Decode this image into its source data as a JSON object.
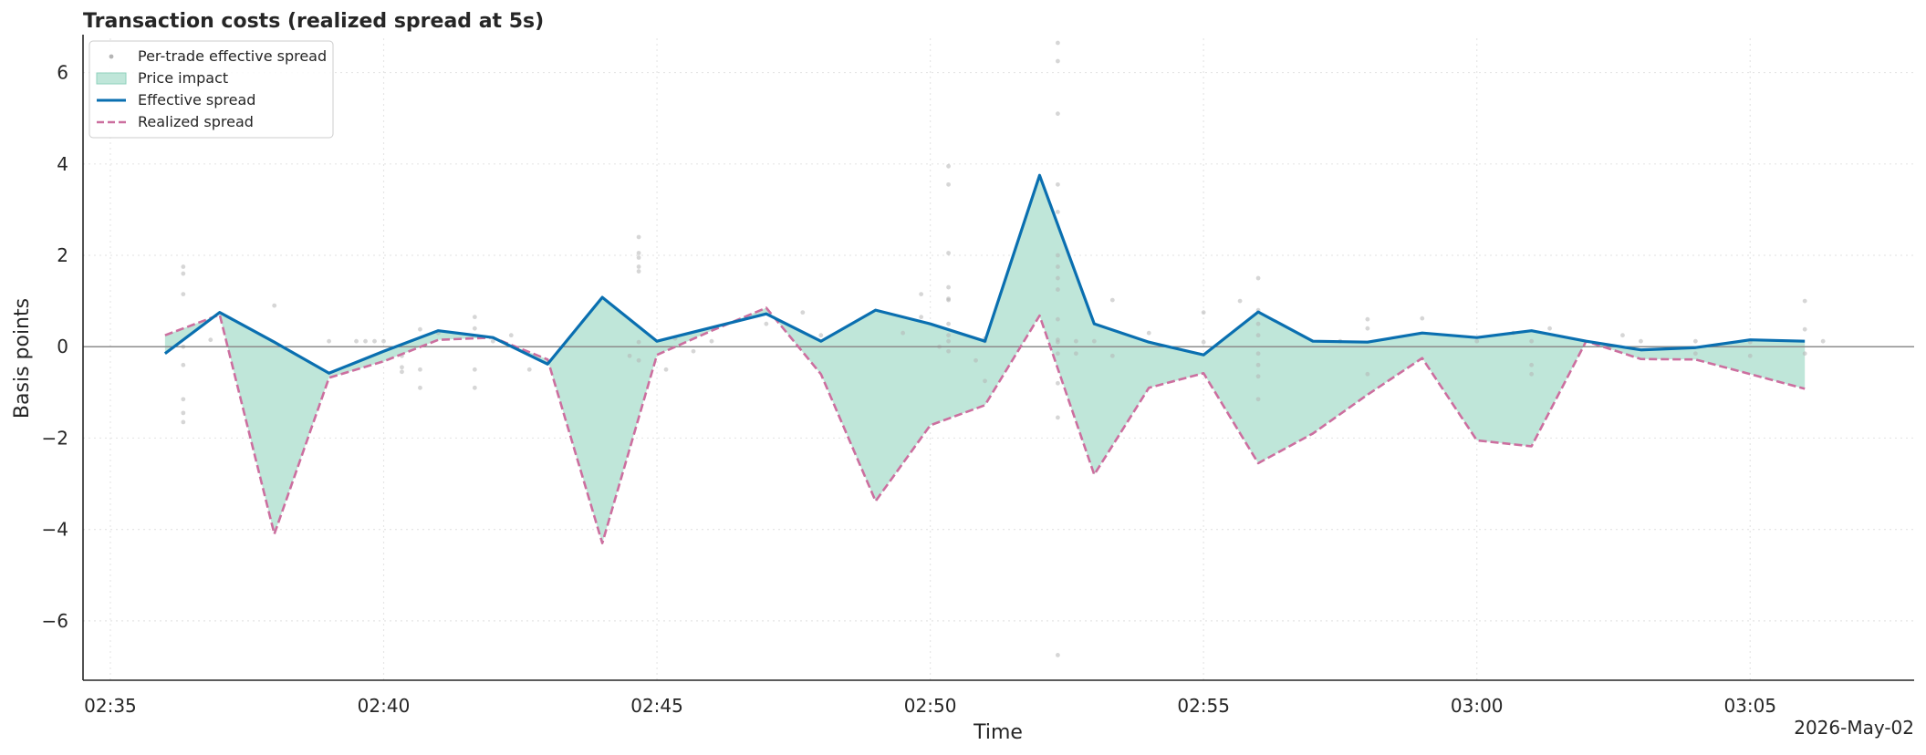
{
  "chart_data": {
    "type": "line",
    "title": "Transaction costs (realized spread at 5s)",
    "xlabel": "Time",
    "ylabel": "Basis points",
    "date_label": "2026-May-02",
    "x_ticks": [
      "02:35",
      "02:40",
      "02:45",
      "02:50",
      "02:55",
      "03:00",
      "03:05"
    ],
    "y_ticks": [
      "−6",
      "−4",
      "−2",
      "0",
      "2",
      "4",
      "6"
    ],
    "ylim": [
      -7.3,
      6.75
    ],
    "xlim": [
      "02:34:30",
      "03:08:00"
    ],
    "grid": true,
    "legend_position": "top-left",
    "x": [
      "02:36",
      "02:37",
      "02:38",
      "02:39",
      "02:40",
      "02:41",
      "02:42",
      "02:43",
      "02:44",
      "02:45",
      "02:46",
      "02:47",
      "02:48",
      "02:49",
      "02:50",
      "02:51",
      "02:52",
      "02:53",
      "02:54",
      "02:55",
      "02:56",
      "02:57",
      "02:58",
      "02:59",
      "03:00",
      "03:01",
      "03:02",
      "03:03",
      "03:04",
      "03:05",
      "03:06"
    ],
    "series": [
      {
        "name": "Effective spread",
        "color": "#0a6fb0",
        "style": "solid",
        "values": [
          -0.15,
          0.75,
          0.1,
          -0.58,
          -0.1,
          0.35,
          0.2,
          -0.38,
          1.08,
          0.12,
          0.42,
          0.72,
          0.12,
          0.8,
          0.5,
          0.12,
          3.75,
          0.5,
          0.1,
          -0.18,
          0.76,
          0.12,
          0.1,
          0.3,
          0.2,
          0.35,
          0.12,
          -0.07,
          -0.02,
          0.15,
          0.12
        ]
      },
      {
        "name": "Realized spread",
        "color": "#cc6f9f",
        "style": "dashed",
        "values": [
          0.25,
          0.7,
          -4.1,
          -0.68,
          -0.32,
          0.15,
          0.2,
          -0.28,
          -4.3,
          -0.18,
          0.35,
          0.85,
          -0.6,
          -3.38,
          -1.72,
          -1.28,
          0.68,
          -2.8,
          -0.9,
          -0.58,
          -2.55,
          -1.9,
          -1.05,
          -0.25,
          -2.05,
          -2.18,
          0.12,
          -0.27,
          -0.28,
          -0.6,
          -0.92
        ]
      },
      {
        "name": "Price impact",
        "color": "#bfe6d9",
        "style": "fill-between"
      },
      {
        "name": "Per-trade effective spread",
        "color": "#b5b5b5",
        "style": "scatter",
        "points": [
          [
            "02:36:20",
            1.75
          ],
          [
            "02:36:20",
            1.6
          ],
          [
            "02:36:20",
            1.15
          ],
          [
            "02:36:20",
            -0.4
          ],
          [
            "02:36:20",
            -1.15
          ],
          [
            "02:36:20",
            -1.45
          ],
          [
            "02:36:20",
            -1.65
          ],
          [
            "02:36:20",
            0.0
          ],
          [
            "02:36:50",
            0.15
          ],
          [
            "02:38:00",
            0.9
          ],
          [
            "02:39:00",
            0.12
          ],
          [
            "02:39:30",
            0.12
          ],
          [
            "02:39:40",
            0.12
          ],
          [
            "02:39:50",
            0.12
          ],
          [
            "02:40:00",
            0.12
          ],
          [
            "02:40:20",
            -0.55
          ],
          [
            "02:40:20",
            -0.45
          ],
          [
            "02:40:20",
            -0.2
          ],
          [
            "02:40:40",
            -0.9
          ],
          [
            "02:40:40",
            -0.5
          ],
          [
            "02:40:40",
            0.38
          ],
          [
            "02:41:00",
            0.3
          ],
          [
            "02:41:40",
            0.65
          ],
          [
            "02:41:40",
            0.4
          ],
          [
            "02:41:40",
            -0.5
          ],
          [
            "02:41:40",
            -0.9
          ],
          [
            "02:42:00",
            0.12
          ],
          [
            "02:42:20",
            0.25
          ],
          [
            "02:42:40",
            -0.5
          ],
          [
            "02:44:40",
            2.4
          ],
          [
            "02:44:40",
            2.05
          ],
          [
            "02:44:40",
            1.95
          ],
          [
            "02:44:40",
            1.75
          ],
          [
            "02:44:40",
            1.65
          ],
          [
            "02:44:40",
            0.1
          ],
          [
            "02:44:40",
            -0.3
          ],
          [
            "02:44:30",
            -0.2
          ],
          [
            "02:45:10",
            -0.5
          ],
          [
            "02:45:20",
            0.18
          ],
          [
            "02:45:40",
            -0.1
          ],
          [
            "02:46:00",
            0.12
          ],
          [
            "02:47:00",
            0.5
          ],
          [
            "02:47:40",
            0.75
          ],
          [
            "02:48:00",
            0.25
          ],
          [
            "02:49:30",
            0.3
          ],
          [
            "02:49:50",
            1.15
          ],
          [
            "02:49:50",
            0.65
          ],
          [
            "02:50:10",
            0.0
          ],
          [
            "02:50:20",
            0.12
          ],
          [
            "02:50:20",
            0.25
          ],
          [
            "02:50:20",
            1.05
          ],
          [
            "02:50:20",
            1.02
          ],
          [
            "02:50:20",
            1.3
          ],
          [
            "02:50:20",
            0.5
          ],
          [
            "02:50:20",
            3.95
          ],
          [
            "02:50:20",
            3.55
          ],
          [
            "02:50:20",
            2.05
          ],
          [
            "02:50:20",
            -0.1
          ],
          [
            "02:51:00",
            0.12
          ],
          [
            "02:51:00",
            0.18
          ],
          [
            "02:50:50",
            -0.3
          ],
          [
            "02:51:00",
            -0.75
          ],
          [
            "02:52:20",
            6.65
          ],
          [
            "02:52:20",
            6.25
          ],
          [
            "02:52:20",
            5.1
          ],
          [
            "02:52:20",
            3.55
          ],
          [
            "02:52:20",
            2.95
          ],
          [
            "02:52:20",
            2.0
          ],
          [
            "02:52:20",
            1.75
          ],
          [
            "02:52:20",
            1.5
          ],
          [
            "02:52:20",
            1.25
          ],
          [
            "02:52:20",
            0.6
          ],
          [
            "02:52:20",
            0.15
          ],
          [
            "02:52:20",
            0.1
          ],
          [
            "02:52:20",
            -0.15
          ],
          [
            "02:52:20",
            -0.8
          ],
          [
            "02:52:20",
            -1.55
          ],
          [
            "02:52:20",
            -6.75
          ],
          [
            "02:52:40",
            0.12
          ],
          [
            "02:52:40",
            -0.15
          ],
          [
            "02:53:00",
            0.12
          ],
          [
            "02:53:20",
            1.02
          ],
          [
            "02:53:20",
            -0.2
          ],
          [
            "02:54:00",
            0.3
          ],
          [
            "02:55:00",
            0.75
          ],
          [
            "02:55:00",
            0.1
          ],
          [
            "02:55:40",
            1.0
          ],
          [
            "02:56:00",
            1.5
          ],
          [
            "02:56:00",
            0.8
          ],
          [
            "02:56:00",
            0.5
          ],
          [
            "02:56:00",
            0.25
          ],
          [
            "02:56:00",
            -0.15
          ],
          [
            "02:56:00",
            -0.4
          ],
          [
            "02:56:00",
            -0.65
          ],
          [
            "02:56:00",
            -1.15
          ],
          [
            "02:57:30",
            0.12
          ],
          [
            "02:58:00",
            0.6
          ],
          [
            "02:58:00",
            0.4
          ],
          [
            "02:58:00",
            -0.6
          ],
          [
            "02:59:00",
            0.62
          ],
          [
            "03:00:00",
            0.12
          ],
          [
            "03:00:40",
            0.3
          ],
          [
            "03:01:00",
            0.12
          ],
          [
            "03:01:00",
            -0.4
          ],
          [
            "03:01:00",
            -0.6
          ],
          [
            "03:01:20",
            0.4
          ],
          [
            "03:02:40",
            0.25
          ],
          [
            "03:03:00",
            0.12
          ],
          [
            "03:04:00",
            0.12
          ],
          [
            "03:04:00",
            -0.15
          ],
          [
            "03:05:00",
            0.1
          ],
          [
            "03:05:00",
            -0.2
          ],
          [
            "03:06:00",
            1.0
          ],
          [
            "03:06:00",
            0.38
          ],
          [
            "03:06:00",
            -0.15
          ],
          [
            "03:06:20",
            0.12
          ]
        ]
      }
    ]
  }
}
